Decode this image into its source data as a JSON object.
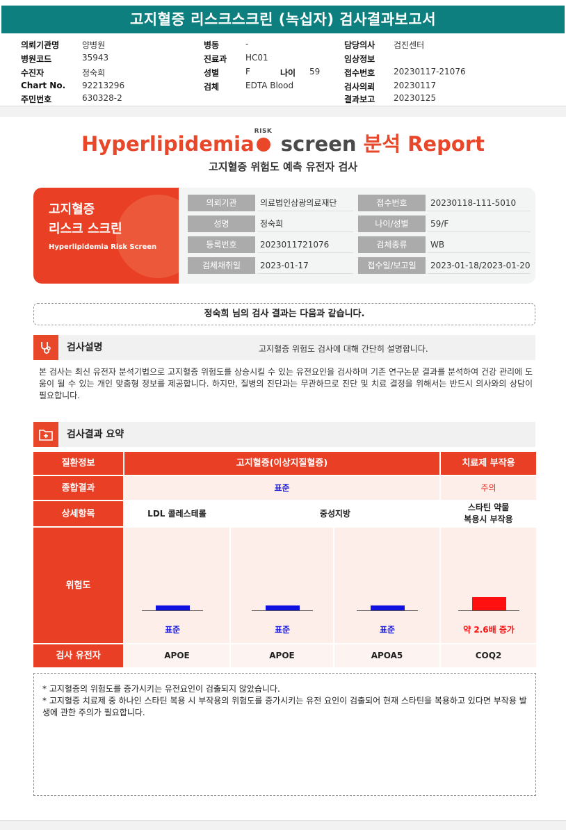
{
  "report_title": "고지혈증 리스크스크린 (녹십자) 검사결과보고서",
  "header": {
    "col1": [
      {
        "label": "의뢰기관명",
        "value": "양병원"
      },
      {
        "label": "병원코드",
        "value": "35943"
      },
      {
        "label": "수진자",
        "value": "정숙희"
      },
      {
        "label": "Chart No.",
        "value": "92213296"
      },
      {
        "label": "주민번호",
        "value": "630328-2"
      }
    ],
    "col2": [
      {
        "label": "병동",
        "value": "-"
      },
      {
        "label": "진료과",
        "value": "HC01"
      },
      {
        "label": "성별",
        "value": "F"
      },
      {
        "label": "검체",
        "value": "EDTA Blood"
      }
    ],
    "age": {
      "label": "나이",
      "value": "59"
    },
    "col3": [
      {
        "label": "담당의사",
        "value": "검진센터"
      },
      {
        "label": "임상정보",
        "value": ""
      },
      {
        "label": "접수번호",
        "value": "20230117-21076"
      },
      {
        "label": "검사의뢰",
        "value": "20230117"
      },
      {
        "label": "결과보고",
        "value": "20230125"
      }
    ]
  },
  "brand": {
    "part1": "Hyperlipidemia",
    "risk": "RISK",
    "part2": "screen",
    "part3": "분석 Report",
    "subtitle": "고지혈증 위험도 예측 유전자 검사"
  },
  "card": {
    "title_line1": "고지혈증",
    "title_line2": "리스크 스크린",
    "title_en": "Hyperlipidemia Risk Screen",
    "rows": [
      {
        "l1": "의뢰기관",
        "v1": "의료법인삼광의료재단",
        "l2": "접수번호",
        "v2": "20230118-111-5010"
      },
      {
        "l1": "성명",
        "v1": "정숙희",
        "l2": "나이/성별",
        "v2": "59/F"
      },
      {
        "l1": "등록번호",
        "v1": "2023011721076",
        "l2": "검체종류",
        "v2": "WB"
      },
      {
        "l1": "검체채취일",
        "v1": "2023-01-17",
        "l2": "접수일/보고일",
        "v2": "2023-01-18/2023-01-20"
      }
    ]
  },
  "greeting": "정숙희 님의 검사 결과는 다음과 같습니다.",
  "section1": {
    "title": "검사설명",
    "note": "고지혈증 위험도 검사에 대해 간단히 설명합니다.",
    "description": "본 검사는 최신 유전자 분석기법으로 고지혈증 위험도를 상승시킬 수 있는 유전요인을 검사하며 기존 연구논문 결과를 분석하여 건강 관리에 도움이 될 수 있는 개인 맞춤형 정보를 제공합니다. 하지만, 질병의 진단과는 무관하므로 진단 및 치료 결정을 위해서는 반드시 의사와의 상담이 필요합니다."
  },
  "section2": {
    "title": "검사결과 요약"
  },
  "table": {
    "row_labels": {
      "disease": "질환정보",
      "overall": "종합결과",
      "detail": "상세항목",
      "risk": "위험도",
      "gene": "검사 유전자"
    },
    "disease_main": "고지혈증(이상지질혈증)",
    "disease_side": "치료제 부작용",
    "overall_main": "표준",
    "overall_side": "주의",
    "detail_ldl": "LDL 콜레스테롤",
    "detail_tg": "중성지방",
    "detail_statin": "스타틴 약물\n복용시 부작용",
    "risk_items": [
      {
        "level": 1.0,
        "label": "표준",
        "color": "#1010e0",
        "gene": "APOE"
      },
      {
        "level": 1.0,
        "label": "표준",
        "color": "#1010e0",
        "gene": "APOE"
      },
      {
        "level": 1.0,
        "label": "표준",
        "color": "#1010e0",
        "gene": "APOA5"
      },
      {
        "level": 2.6,
        "label": "약 2.6배 증가",
        "color": "#ff1010",
        "gene": "COQ2"
      }
    ]
  },
  "notes": [
    "* 고지혈증의 위험도를 증가시키는 유전요인이 검출되지 않았습니다.",
    "* 고지혈증 치료제 중 하나인 스타틴 복용 시 부작용의 위험도를 증가시키는 유전 요인이 검출되어 현재 스타틴을 복용하고 있다면 부작용 발생에 관한 주의가 필요합니다."
  ],
  "colors": {
    "title_bar": "#0e7f7f",
    "accent": "#e83f25",
    "standard": "#1010e0",
    "caution": "#ff1010"
  }
}
